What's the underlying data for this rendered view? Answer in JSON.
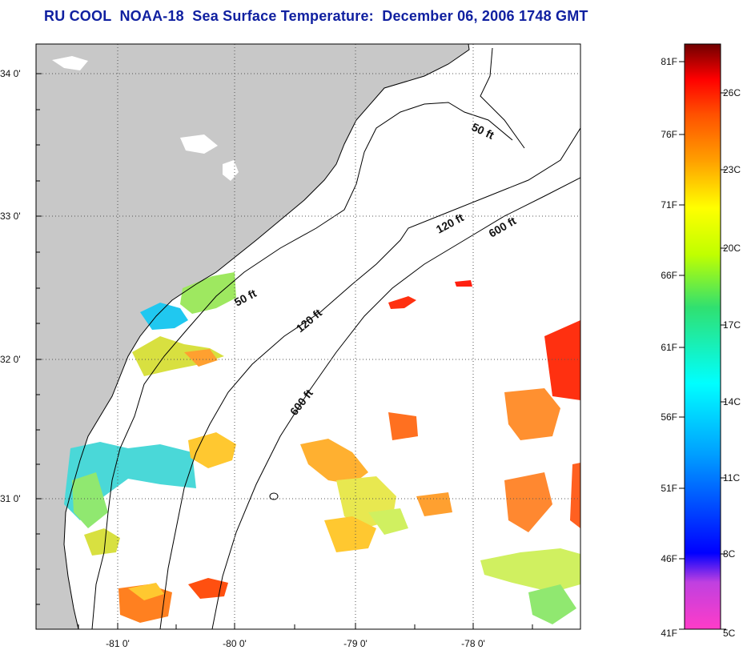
{
  "title": "RU COOL  NOAA-18  Sea Surface Temperature:  December 06, 2006 1748 GMT",
  "map": {
    "lat_ticks": [
      "34 0'",
      "33 0'",
      "32 0'",
      "31 0'"
    ],
    "lon_ticks": [
      "-81 0'",
      "-80 0'",
      "-79 0'",
      "-78 0'"
    ],
    "grid": true,
    "land_color": "#c8c8c8",
    "coast_color": "#000000",
    "contours": [
      {
        "label": "50 ft"
      },
      {
        "label": "50 ft"
      },
      {
        "label": "120 ft"
      },
      {
        "label": "120 ft"
      },
      {
        "label": "600 ft"
      },
      {
        "label": "600 ft"
      }
    ]
  },
  "colorbar": {
    "fahrenheit": [
      "81F",
      "76F",
      "71F",
      "66F",
      "61F",
      "56F",
      "51F",
      "46F",
      "41F"
    ],
    "celsius": [
      "26C",
      "23C",
      "20C",
      "17C",
      "14C",
      "11C",
      "8C",
      "5C"
    ],
    "colors": [
      "#ff3cc8",
      "#c040e0",
      "#0000ff",
      "#00a0ff",
      "#00ffff",
      "#30e070",
      "#c0ff00",
      "#ffff00",
      "#ffa000",
      "#ff5000",
      "#ff0000",
      "#a00000",
      "#700000"
    ]
  }
}
